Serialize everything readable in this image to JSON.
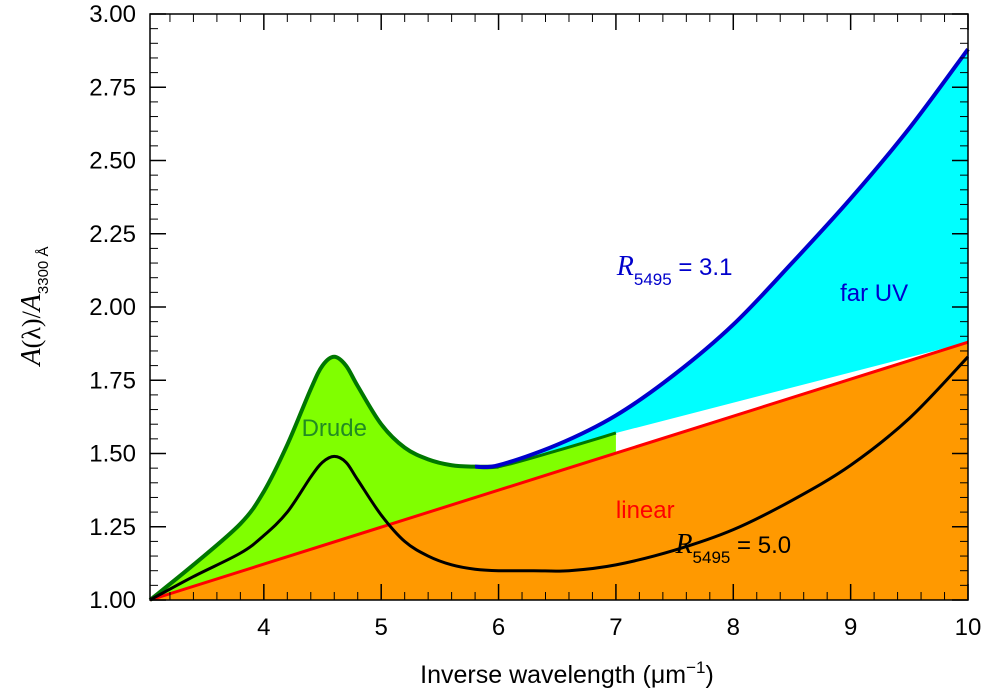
{
  "chart_data": {
    "type": "area",
    "xlabel": {
      "base": "Inverse wavelength (",
      "unit": "μm",
      "sup": "−1",
      "close": ")"
    },
    "ylabel": {
      "A": "A",
      "lambda": "(λ)/",
      "A2": "A",
      "sub": "3300 Å"
    },
    "xlim": [
      3.03,
      10
    ],
    "ylim": [
      1.0,
      3.0
    ],
    "x_ticks": [
      4,
      5,
      6,
      7,
      8,
      9,
      10
    ],
    "x_tick_labels": [
      "4",
      "5",
      "6",
      "7",
      "8",
      "9",
      "10"
    ],
    "y_ticks": [
      1.0,
      1.25,
      1.5,
      1.75,
      2.0,
      2.25,
      2.5,
      2.75,
      3.0
    ],
    "y_tick_labels": [
      "1.00",
      "1.25",
      "1.50",
      "1.75",
      "2.00",
      "2.25",
      "2.50",
      "2.75",
      "3.00"
    ],
    "grid": false,
    "series": [
      {
        "name": "linear",
        "color": "#ff0000",
        "fill": "#ff9900",
        "x": [
          3.03,
          10
        ],
        "values": [
          1.0,
          1.88
        ]
      },
      {
        "name": "Drude",
        "color": "#007700",
        "fill": "#80ff00",
        "x": [
          3.03,
          3.4,
          3.8,
          4.0,
          4.2,
          4.4,
          4.5,
          4.6,
          4.7,
          4.8,
          5.0,
          5.2,
          5.4,
          5.6,
          5.8,
          6.0,
          6.5,
          7.0
        ],
        "values": [
          1.0,
          1.12,
          1.26,
          1.37,
          1.53,
          1.72,
          1.8,
          1.83,
          1.8,
          1.73,
          1.6,
          1.52,
          1.48,
          1.46,
          1.455,
          1.455,
          1.51,
          1.57
        ]
      },
      {
        "name": "far UV",
        "color": "#0000cc",
        "fill": "#00ffff",
        "x": [
          5.8,
          6.0,
          6.5,
          7.0,
          7.5,
          8.0,
          8.5,
          9.0,
          9.5,
          10.0
        ],
        "values": [
          1.455,
          1.46,
          1.53,
          1.63,
          1.77,
          1.94,
          2.15,
          2.37,
          2.61,
          2.88
        ]
      },
      {
        "name": "R5495 = 5.0",
        "color": "#000000",
        "x": [
          3.03,
          3.4,
          3.8,
          4.0,
          4.2,
          4.4,
          4.5,
          4.6,
          4.7,
          4.8,
          5.0,
          5.2,
          5.4,
          5.6,
          5.8,
          6.0,
          6.3,
          6.6,
          7.0,
          7.5,
          8.0,
          8.5,
          9.0,
          9.5,
          10.0
        ],
        "values": [
          1.0,
          1.08,
          1.16,
          1.22,
          1.3,
          1.42,
          1.47,
          1.49,
          1.47,
          1.41,
          1.29,
          1.2,
          1.15,
          1.12,
          1.105,
          1.1,
          1.1,
          1.1,
          1.12,
          1.17,
          1.24,
          1.34,
          1.46,
          1.62,
          1.83
        ]
      }
    ],
    "annotations": [
      {
        "name": "drude-label",
        "text": "Drude",
        "color": "#228b22",
        "x": 4.6,
        "y": 1.56
      },
      {
        "name": "linear-label",
        "text": "linear",
        "color": "#ff0000",
        "x": 7.25,
        "y": 1.28
      },
      {
        "name": "far-uv-label",
        "text": "far UV",
        "color": "#0000cc",
        "x": 9.2,
        "y": 2.02
      },
      {
        "name": "r31-label",
        "R": "R",
        "sub": "5495",
        "rest": " = 3.1",
        "color": "#0000cc",
        "x": 7.5,
        "y": 2.11
      },
      {
        "name": "r50-label",
        "R": "R",
        "sub": "5495",
        "rest": " = 5.0",
        "color": "#000000",
        "x": 8.0,
        "y": 1.16
      }
    ]
  }
}
